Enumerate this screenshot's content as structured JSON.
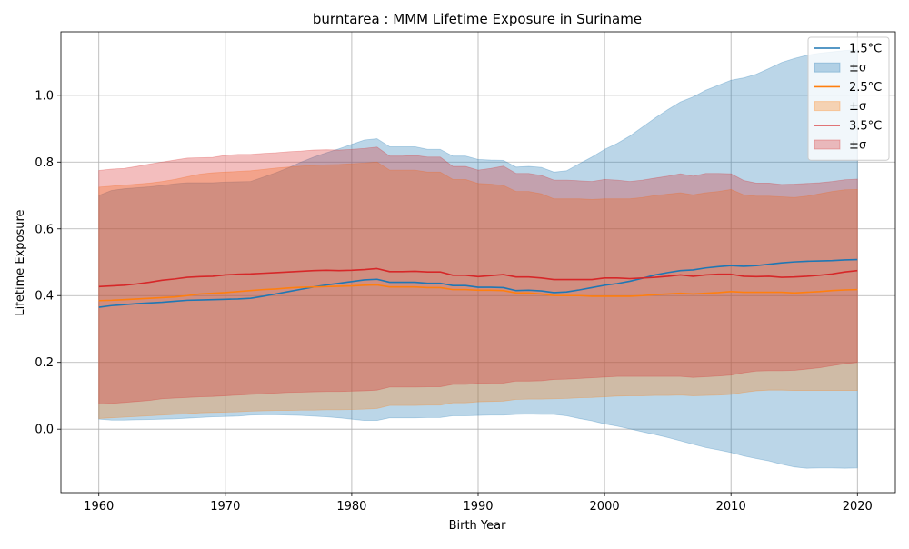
{
  "chart_data": {
    "type": "area",
    "title": "burntarea : MMM Lifetime Exposure in Suriname",
    "xlabel": "Birth Year",
    "ylabel": "Lifetime Exposure",
    "xlim": [
      1957,
      2023
    ],
    "ylim": [
      -0.19,
      1.19
    ],
    "x_ticks": [
      1960,
      1970,
      1980,
      1990,
      2000,
      2010,
      2020
    ],
    "y_ticks": [
      0.0,
      0.2,
      0.4,
      0.6,
      0.8,
      1.0
    ],
    "grid": true,
    "legend_position": "top-right",
    "x": [
      1960,
      1961,
      1962,
      1963,
      1964,
      1965,
      1966,
      1967,
      1968,
      1969,
      1970,
      1971,
      1972,
      1973,
      1974,
      1975,
      1976,
      1977,
      1978,
      1979,
      1980,
      1981,
      1982,
      1983,
      1984,
      1985,
      1986,
      1987,
      1988,
      1989,
      1990,
      1991,
      1992,
      1993,
      1994,
      1995,
      1996,
      1997,
      1998,
      1999,
      2000,
      2001,
      2002,
      2003,
      2004,
      2005,
      2006,
      2007,
      2008,
      2009,
      2010,
      2011,
      2012,
      2013,
      2014,
      2015,
      2016,
      2017,
      2018,
      2019,
      2020
    ],
    "series": [
      {
        "name": "1.5°C",
        "band_name": "±σ",
        "color": "#1f77b4",
        "band_color": "#1f77b4",
        "mean": [
          0.365,
          0.37,
          0.373,
          0.376,
          0.378,
          0.38,
          0.383,
          0.386,
          0.387,
          0.388,
          0.389,
          0.39,
          0.392,
          0.398,
          0.405,
          0.412,
          0.419,
          0.426,
          0.432,
          0.437,
          0.442,
          0.447,
          0.449,
          0.44,
          0.44,
          0.44,
          0.437,
          0.437,
          0.43,
          0.43,
          0.425,
          0.425,
          0.424,
          0.415,
          0.416,
          0.414,
          0.409,
          0.411,
          0.417,
          0.424,
          0.431,
          0.436,
          0.443,
          0.452,
          0.462,
          0.469,
          0.475,
          0.477,
          0.483,
          0.487,
          0.49,
          0.488,
          0.49,
          0.494,
          0.498,
          0.501,
          0.503,
          0.504,
          0.505,
          0.507,
          0.508
        ],
        "upper": [
          0.7,
          0.715,
          0.72,
          0.723,
          0.726,
          0.73,
          0.735,
          0.738,
          0.738,
          0.738,
          0.74,
          0.741,
          0.742,
          0.755,
          0.768,
          0.783,
          0.8,
          0.815,
          0.828,
          0.84,
          0.853,
          0.866,
          0.87,
          0.846,
          0.846,
          0.846,
          0.838,
          0.838,
          0.818,
          0.818,
          0.808,
          0.806,
          0.805,
          0.785,
          0.787,
          0.784,
          0.77,
          0.774,
          0.795,
          0.815,
          0.838,
          0.856,
          0.878,
          0.905,
          0.932,
          0.957,
          0.98,
          0.995,
          1.015,
          1.03,
          1.045,
          1.052,
          1.063,
          1.08,
          1.098,
          1.11,
          1.12,
          1.126,
          1.13,
          1.134,
          1.136
        ],
        "lower": [
          0.03,
          0.027,
          0.027,
          0.028,
          0.029,
          0.03,
          0.031,
          0.033,
          0.035,
          0.037,
          0.038,
          0.039,
          0.042,
          0.043,
          0.043,
          0.042,
          0.041,
          0.039,
          0.037,
          0.034,
          0.03,
          0.026,
          0.026,
          0.034,
          0.034,
          0.034,
          0.035,
          0.035,
          0.04,
          0.04,
          0.041,
          0.042,
          0.042,
          0.044,
          0.045,
          0.044,
          0.044,
          0.04,
          0.032,
          0.025,
          0.016,
          0.009,
          0.001,
          -0.008,
          -0.016,
          -0.025,
          -0.035,
          -0.045,
          -0.055,
          -0.062,
          -0.07,
          -0.08,
          -0.088,
          -0.095,
          -0.105,
          -0.113,
          -0.117,
          -0.116,
          -0.116,
          -0.117,
          -0.116
        ]
      },
      {
        "name": "2.5°C",
        "band_name": "±σ",
        "color": "#ff7f0e",
        "band_color": "#ff7f0e",
        "mean": [
          0.385,
          0.386,
          0.388,
          0.39,
          0.392,
          0.394,
          0.396,
          0.4,
          0.405,
          0.407,
          0.409,
          0.412,
          0.415,
          0.418,
          0.42,
          0.423,
          0.425,
          0.426,
          0.427,
          0.428,
          0.429,
          0.431,
          0.432,
          0.426,
          0.426,
          0.426,
          0.424,
          0.424,
          0.418,
          0.418,
          0.416,
          0.416,
          0.415,
          0.408,
          0.408,
          0.405,
          0.4,
          0.4,
          0.4,
          0.398,
          0.398,
          0.398,
          0.398,
          0.4,
          0.403,
          0.405,
          0.407,
          0.405,
          0.407,
          0.409,
          0.412,
          0.41,
          0.41,
          0.41,
          0.41,
          0.408,
          0.41,
          0.412,
          0.415,
          0.417,
          0.418
        ],
        "upper": [
          0.725,
          0.728,
          0.731,
          0.734,
          0.737,
          0.742,
          0.748,
          0.756,
          0.764,
          0.768,
          0.77,
          0.772,
          0.774,
          0.778,
          0.782,
          0.785,
          0.788,
          0.79,
          0.792,
          0.793,
          0.795,
          0.797,
          0.8,
          0.776,
          0.776,
          0.776,
          0.77,
          0.77,
          0.748,
          0.748,
          0.736,
          0.734,
          0.73,
          0.712,
          0.712,
          0.705,
          0.69,
          0.69,
          0.69,
          0.688,
          0.69,
          0.69,
          0.69,
          0.694,
          0.7,
          0.704,
          0.708,
          0.702,
          0.708,
          0.712,
          0.718,
          0.702,
          0.698,
          0.698,
          0.696,
          0.694,
          0.698,
          0.705,
          0.712,
          0.717,
          0.718
        ],
        "lower": [
          0.032,
          0.034,
          0.036,
          0.038,
          0.04,
          0.042,
          0.044,
          0.046,
          0.049,
          0.05,
          0.051,
          0.052,
          0.054,
          0.055,
          0.056,
          0.056,
          0.057,
          0.057,
          0.058,
          0.058,
          0.059,
          0.06,
          0.062,
          0.071,
          0.071,
          0.071,
          0.072,
          0.072,
          0.079,
          0.079,
          0.082,
          0.083,
          0.084,
          0.089,
          0.09,
          0.09,
          0.091,
          0.092,
          0.094,
          0.095,
          0.097,
          0.099,
          0.1,
          0.1,
          0.101,
          0.101,
          0.102,
          0.1,
          0.101,
          0.102,
          0.104,
          0.11,
          0.115,
          0.117,
          0.117,
          0.116,
          0.116,
          0.116,
          0.116,
          0.116,
          0.116
        ]
      },
      {
        "name": "3.5°C",
        "band_name": "±σ",
        "color": "#d62728",
        "band_color": "#d62728",
        "mean": [
          0.427,
          0.429,
          0.431,
          0.435,
          0.44,
          0.446,
          0.45,
          0.455,
          0.457,
          0.458,
          0.462,
          0.464,
          0.465,
          0.467,
          0.469,
          0.471,
          0.473,
          0.475,
          0.476,
          0.475,
          0.476,
          0.478,
          0.481,
          0.472,
          0.472,
          0.473,
          0.471,
          0.471,
          0.461,
          0.461,
          0.457,
          0.46,
          0.463,
          0.456,
          0.456,
          0.453,
          0.448,
          0.448,
          0.448,
          0.448,
          0.453,
          0.453,
          0.451,
          0.453,
          0.455,
          0.458,
          0.462,
          0.458,
          0.462,
          0.464,
          0.464,
          0.458,
          0.457,
          0.458,
          0.455,
          0.456,
          0.458,
          0.461,
          0.465,
          0.471,
          0.475
        ],
        "upper": [
          0.775,
          0.779,
          0.781,
          0.787,
          0.794,
          0.8,
          0.806,
          0.812,
          0.813,
          0.814,
          0.82,
          0.823,
          0.823,
          0.826,
          0.828,
          0.831,
          0.833,
          0.836,
          0.837,
          0.836,
          0.838,
          0.841,
          0.845,
          0.818,
          0.818,
          0.82,
          0.815,
          0.815,
          0.787,
          0.787,
          0.776,
          0.781,
          0.788,
          0.766,
          0.766,
          0.76,
          0.746,
          0.746,
          0.744,
          0.742,
          0.748,
          0.746,
          0.742,
          0.746,
          0.752,
          0.758,
          0.765,
          0.758,
          0.766,
          0.766,
          0.765,
          0.745,
          0.737,
          0.737,
          0.733,
          0.734,
          0.736,
          0.738,
          0.742,
          0.747,
          0.749
        ],
        "lower": [
          0.075,
          0.077,
          0.08,
          0.083,
          0.086,
          0.091,
          0.093,
          0.095,
          0.097,
          0.098,
          0.1,
          0.102,
          0.104,
          0.106,
          0.108,
          0.11,
          0.111,
          0.112,
          0.113,
          0.113,
          0.114,
          0.115,
          0.117,
          0.126,
          0.126,
          0.126,
          0.127,
          0.127,
          0.134,
          0.134,
          0.137,
          0.138,
          0.138,
          0.144,
          0.144,
          0.145,
          0.149,
          0.15,
          0.152,
          0.154,
          0.156,
          0.158,
          0.158,
          0.158,
          0.158,
          0.158,
          0.158,
          0.155,
          0.157,
          0.159,
          0.162,
          0.169,
          0.174,
          0.175,
          0.175,
          0.176,
          0.18,
          0.184,
          0.19,
          0.196,
          0.2
        ]
      }
    ]
  }
}
